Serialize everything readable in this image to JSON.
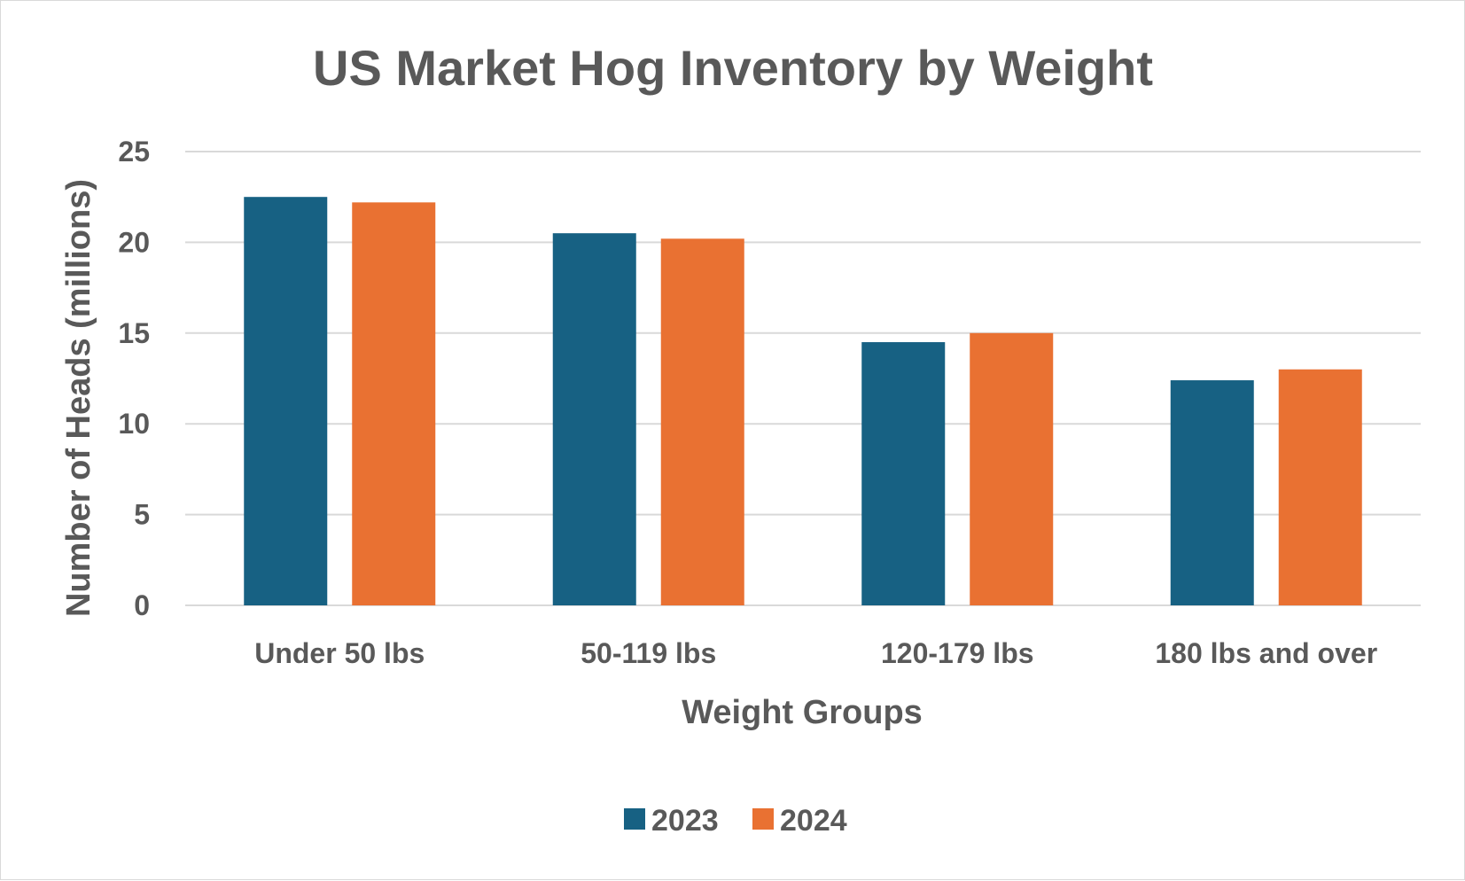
{
  "chart_data": {
    "type": "bar",
    "title": "US Market Hog Inventory by Weight",
    "xlabel": "Weight Groups",
    "ylabel": "Number of Heads (millions)",
    "categories": [
      "Under 50 lbs",
      "50-119 lbs",
      "120-179 lbs",
      "180 lbs and over"
    ],
    "series": [
      {
        "name": "2023",
        "color": "#176183",
        "values": [
          22.5,
          20.5,
          14.5,
          12.4
        ]
      },
      {
        "name": "2024",
        "color": "#e97132",
        "values": [
          22.2,
          20.2,
          15.0,
          13.0
        ]
      }
    ],
    "ylim": [
      0,
      25
    ],
    "yticks": [
      0,
      5,
      10,
      15,
      20,
      25
    ],
    "grid": true,
    "legend_position": "bottom"
  }
}
